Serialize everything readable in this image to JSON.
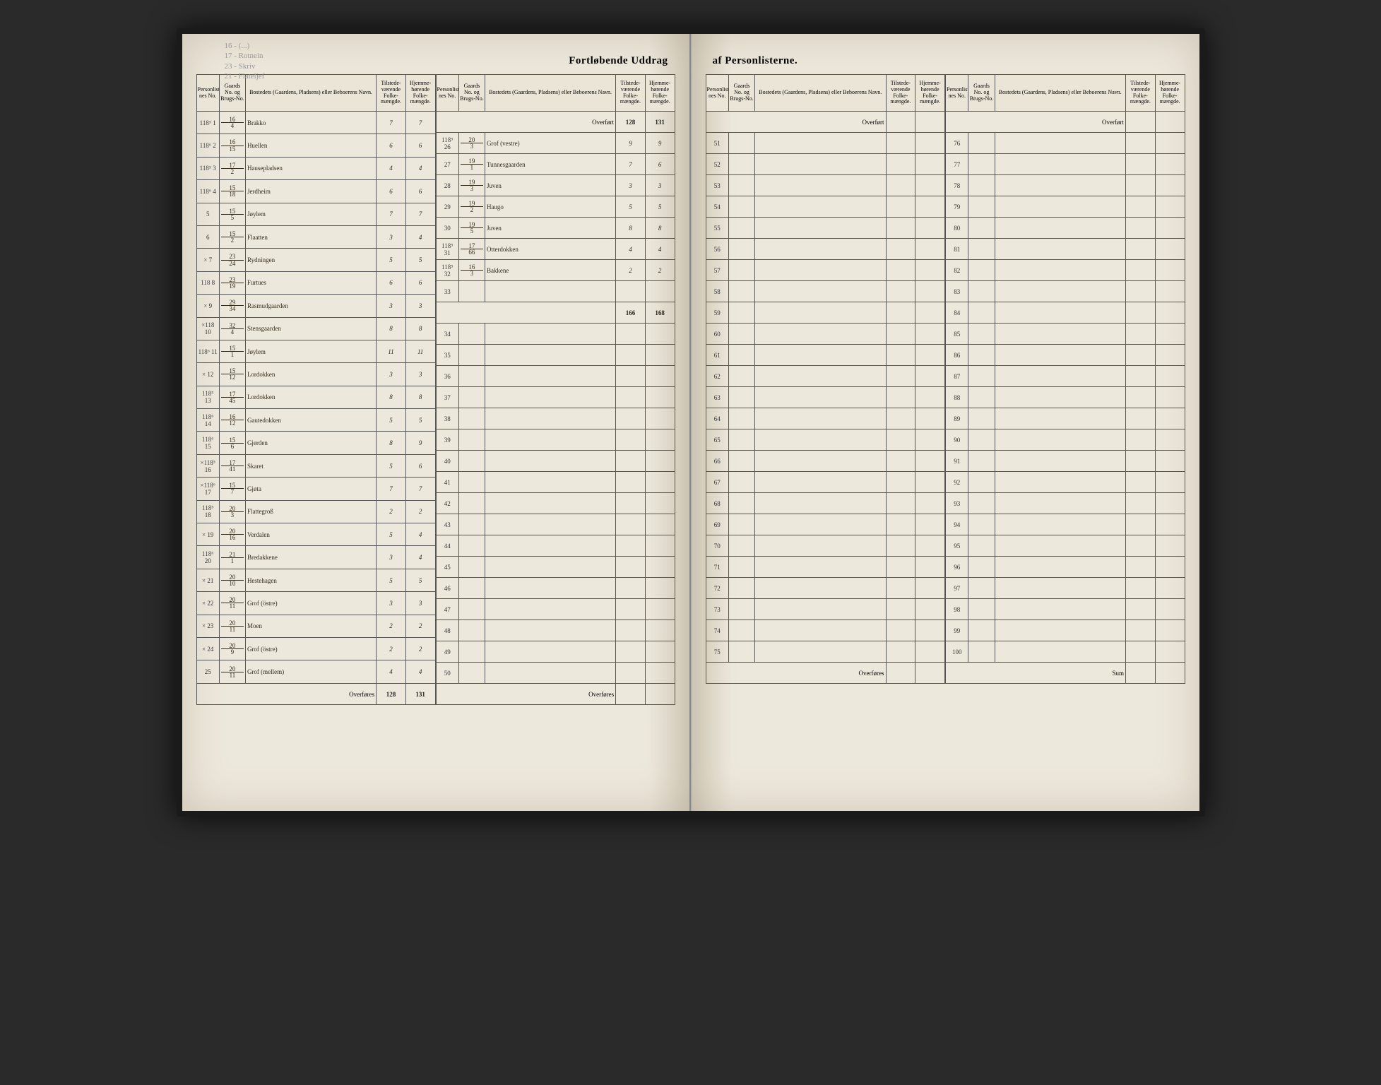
{
  "title_left": "Fortløbende Uddrag",
  "title_right": "af Personlisterne.",
  "pencil_notes": [
    "16 - (...)",
    "17 - Rotnein",
    "23 - Skriv",
    "21 - Flateljef"
  ],
  "headers": {
    "person": "Personlister-nes No.",
    "gaard": "Gaards No. og Brugs-No.",
    "bosted": "Bostedets (Gaardens, Pladsens) eller Beboerens Navn.",
    "tilstede": "Tilstede-værende Folke-mængde.",
    "hjemme": "Hjemme-hørende Folke-mængde."
  },
  "overfort": "Overført",
  "overfores": "Overføres",
  "sum": "Sum",
  "left_block1": [
    {
      "margin": "118⁵",
      "pn": "1",
      "g1": "16",
      "g2": "4",
      "name": "Brakko",
      "t": "7",
      "h": "7"
    },
    {
      "margin": "118⁶",
      "pn": "2",
      "g1": "16",
      "g2": "15",
      "name": "Huellen",
      "t": "6",
      "h": "6"
    },
    {
      "margin": "118⁵",
      "pn": "3",
      "g1": "17",
      "g2": "2",
      "name": "Hausepladsen",
      "t": "4",
      "h": "4"
    },
    {
      "margin": "118⁶",
      "pn": "4",
      "g1": "15",
      "g2": "18",
      "name": "Jerdheim",
      "t": "6",
      "h": "6"
    },
    {
      "margin": "",
      "pn": "5",
      "g1": "15",
      "g2": "5",
      "name": "Jøylem",
      "t": "7",
      "h": "7"
    },
    {
      "margin": "",
      "pn": "6",
      "g1": "15",
      "g2": "2",
      "name": "Flaatten",
      "t": "3",
      "h": "4"
    },
    {
      "margin": "×",
      "pn": "7",
      "g1": "23",
      "g2": "24",
      "name": "Rydningen",
      "t": "5",
      "h": "5"
    },
    {
      "margin": "118",
      "pn": "8",
      "g1": "23",
      "g2": "19",
      "name": "Furtues",
      "t": "6",
      "h": "6"
    },
    {
      "margin": "×",
      "pn": "9",
      "g1": "29",
      "g2": "34",
      "name": "Rasmudgaarden",
      "t": "3",
      "h": "3"
    },
    {
      "margin": "×118",
      "pn": "10",
      "g1": "32",
      "g2": "4",
      "name": "Stensgaarden",
      "t": "8",
      "h": "8"
    },
    {
      "margin": "118⁶",
      "pn": "11",
      "g1": "15",
      "g2": "1",
      "name": "Jøylem",
      "t": "11",
      "h": "11"
    },
    {
      "margin": "×",
      "pn": "12",
      "g1": "15",
      "g2": "12",
      "name": "Lordokken",
      "t": "3",
      "h": "3"
    },
    {
      "margin": "118⁵",
      "pn": "13",
      "g1": "17",
      "g2": "45",
      "name": "Lordokken",
      "t": "8",
      "h": "8"
    },
    {
      "margin": "118⁶",
      "pn": "14",
      "g1": "16",
      "g2": "12",
      "name": "Gautedokken",
      "t": "5",
      "h": "5"
    },
    {
      "margin": "118⁶",
      "pn": "15",
      "g1": "15",
      "g2": "6",
      "name": "Gjerden",
      "t": "8",
      "h": "9"
    },
    {
      "margin": "×118⁵",
      "pn": "16",
      "g1": "17",
      "g2": "41",
      "name": "Skaret",
      "t": "5",
      "h": "6"
    },
    {
      "margin": "×118⁶",
      "pn": "17",
      "g1": "15",
      "g2": "7",
      "name": "Gjøta",
      "t": "7",
      "h": "7"
    },
    {
      "margin": "118⁵",
      "pn": "18",
      "g1": "20",
      "g2": "3",
      "name": "Flattegroß",
      "t": "2",
      "h": "2"
    },
    {
      "margin": "×",
      "pn": "19",
      "g1": "20",
      "g2": "16",
      "name": "Verdalen",
      "t": "5",
      "h": "4"
    },
    {
      "margin": "118⁶",
      "pn": "20",
      "g1": "21",
      "g2": "1",
      "name": "Bredakkene",
      "t": "3",
      "h": "4"
    },
    {
      "margin": "×",
      "pn": "21",
      "g1": "20",
      "g2": "10",
      "name": "Hestehagen",
      "t": "5",
      "h": "5"
    },
    {
      "margin": "×",
      "pn": "22",
      "g1": "20",
      "g2": "11",
      "name": "Grof (östre)",
      "t": "3",
      "h": "3"
    },
    {
      "margin": "×",
      "pn": "23",
      "g1": "20",
      "g2": "11",
      "name": "Moen",
      "t": "2",
      "h": "2"
    },
    {
      "margin": "×",
      "pn": "24",
      "g1": "20",
      "g2": "9",
      "name": "Grof (östre)",
      "t": "2",
      "h": "2"
    },
    {
      "margin": "",
      "pn": "25",
      "g1": "20",
      "g2": "11",
      "name": "Grof (mellem)",
      "t": "4",
      "h": "4"
    }
  ],
  "left_block1_totals": {
    "t": "128",
    "h": "131"
  },
  "left_block2_overfort": {
    "t": "128",
    "h": "131"
  },
  "left_block2": [
    {
      "margin": "118⁵",
      "pn": "26",
      "g1": "20",
      "g2": "3",
      "name": "Grof (vestre)",
      "t": "9",
      "h": "9"
    },
    {
      "margin": "",
      "pn": "27",
      "g1": "19",
      "g2": "1",
      "name": "Tunnesgaarden",
      "t": "7",
      "h": "6"
    },
    {
      "margin": "",
      "pn": "28",
      "g1": "19",
      "g2": "3",
      "name": "Juven",
      "t": "3",
      "h": "3"
    },
    {
      "margin": "",
      "pn": "29",
      "g1": "19",
      "g2": "2",
      "name": "Haugo",
      "t": "5",
      "h": "5"
    },
    {
      "margin": "",
      "pn": "30",
      "g1": "19",
      "g2": "5",
      "name": "Juven",
      "t": "8",
      "h": "8"
    },
    {
      "margin": "118⁵",
      "pn": "31",
      "g1": "17",
      "g2": "66",
      "name": "Otterdokken",
      "t": "4",
      "h": "4"
    },
    {
      "margin": "118⁵",
      "pn": "32",
      "g1": "16",
      "g2": "3",
      "name": "Bakkene",
      "t": "2",
      "h": "2"
    },
    {
      "margin": "",
      "pn": "33",
      "g1": "",
      "g2": "",
      "name": "",
      "t": "",
      "h": ""
    }
  ],
  "left_block2_totals": {
    "t": "166",
    "h": "168"
  },
  "left_block2_empty_start": 34,
  "left_block2_empty_end": 50,
  "right_block1_start": 51,
  "right_block1_end": 75,
  "right_block2_start": 76,
  "right_block2_end": 100
}
